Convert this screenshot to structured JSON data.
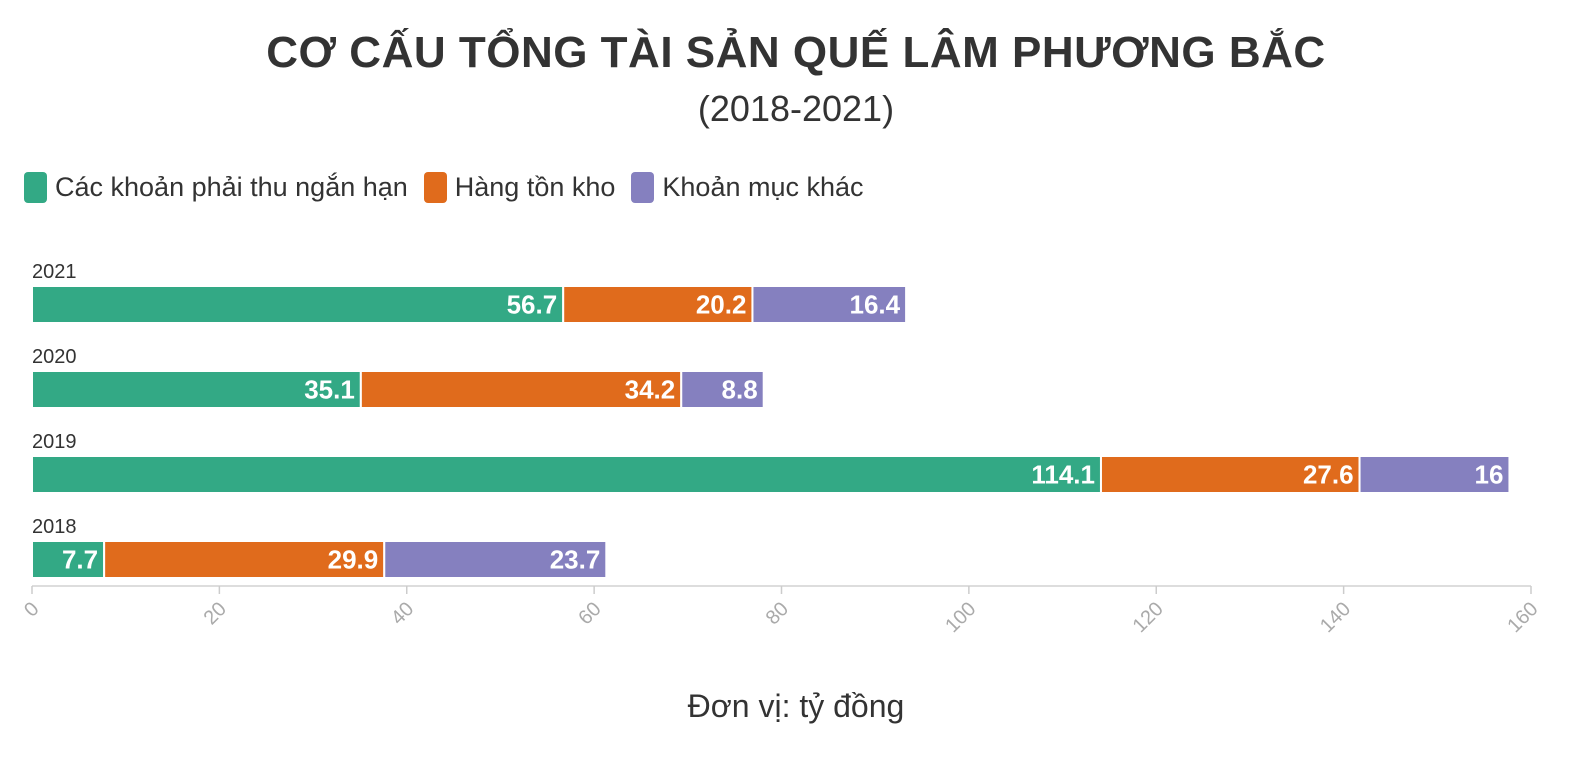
{
  "chart_data": {
    "type": "bar",
    "orientation": "horizontal",
    "stacked": true,
    "title": "CƠ CẤU TỔNG TÀI SẢN QUẾ LÂM PHƯƠNG BẮC",
    "subtitle": "(2018-2021)",
    "categories": [
      "2021",
      "2020",
      "2019",
      "2018"
    ],
    "series": [
      {
        "name": "Các khoản phải thu ngắn hạn",
        "color": "#33a985",
        "values": [
          56.7,
          35.1,
          114.1,
          7.7
        ]
      },
      {
        "name": "Hàng tồn kho",
        "color": "#e06b1c",
        "values": [
          20.2,
          34.2,
          27.6,
          29.9
        ]
      },
      {
        "name": "Khoản mục khác",
        "color": "#8580bf",
        "values": [
          16.4,
          8.8,
          16,
          23.7
        ]
      }
    ],
    "xlim": [
      0,
      160
    ],
    "xticks": [
      "0",
      "20",
      "40",
      "60",
      "80",
      "100",
      "120",
      "140",
      "160"
    ],
    "legend": "top-left",
    "grid": false,
    "note": "Đơn vị: tỷ đồng"
  }
}
